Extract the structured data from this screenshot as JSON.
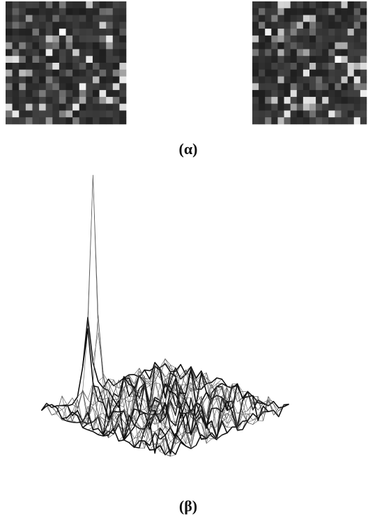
{
  "panels": [
    {
      "label": "(α)"
    },
    {
      "label": "(β)"
    }
  ]
}
